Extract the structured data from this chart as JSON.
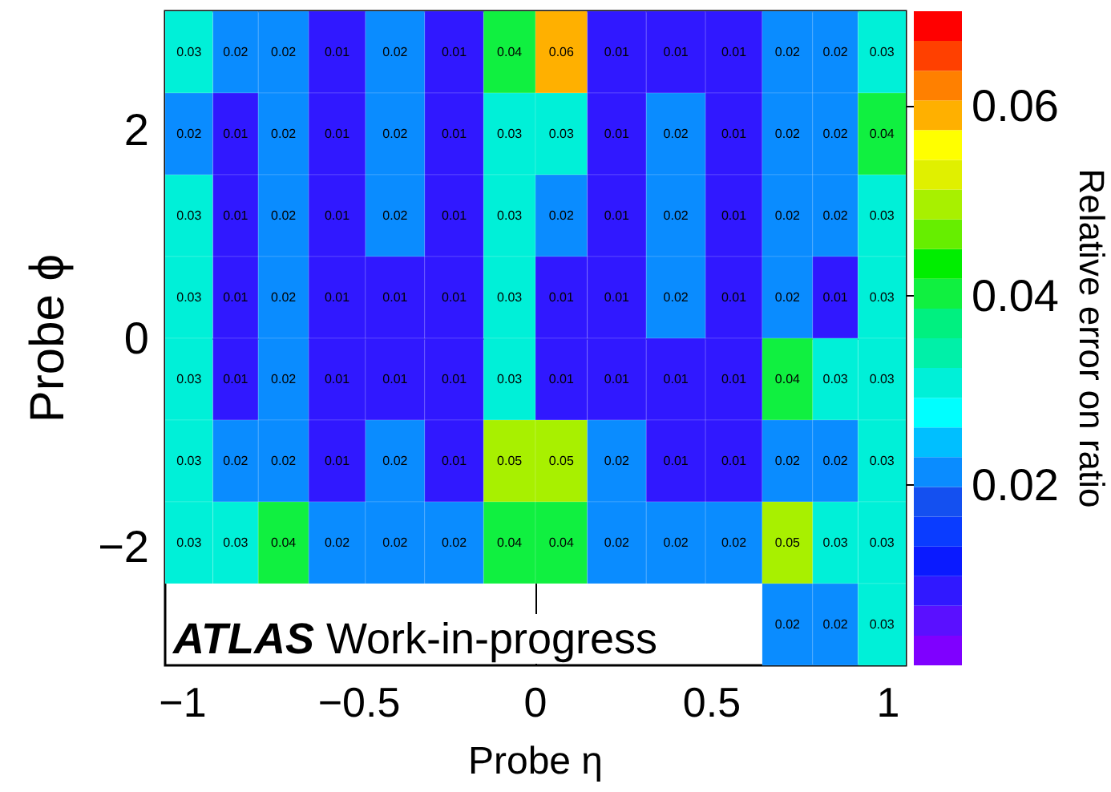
{
  "chart_data": {
    "type": "heatmap",
    "xlabel": "Probe η",
    "ylabel": "Probe ϕ",
    "clabel": "Relative error on ratio",
    "x": [
      -0.979,
      -0.85,
      -0.722,
      -0.564,
      -0.4,
      -0.228,
      -0.066,
      0.066,
      0.228,
      0.4,
      0.564,
      0.722,
      0.85,
      0.979
    ],
    "xlim": [
      -1.05,
      1.05
    ],
    "xticks": [
      -1,
      -0.5,
      0,
      0.5,
      1
    ],
    "ylim": [
      -3.1416,
      3.1416
    ],
    "yticks": [
      -2,
      0,
      2
    ],
    "cells": [
      [
        0.03,
        0.02,
        0.02,
        0.01,
        0.02,
        0.01,
        0.04,
        0.06,
        0.01,
        0.01,
        0.01,
        0.02,
        0.02,
        0.03
      ],
      [
        0.02,
        0.01,
        0.02,
        0.01,
        0.02,
        0.01,
        0.03,
        0.03,
        0.01,
        0.02,
        0.01,
        0.02,
        0.02,
        0.04
      ],
      [
        0.03,
        0.01,
        0.02,
        0.01,
        0.02,
        0.01,
        0.03,
        0.02,
        0.01,
        0.02,
        0.01,
        0.02,
        0.02,
        0.03
      ],
      [
        0.03,
        0.01,
        0.02,
        0.01,
        0.01,
        0.01,
        0.03,
        0.01,
        0.01,
        0.02,
        0.01,
        0.02,
        0.01,
        0.03
      ],
      [
        0.03,
        0.01,
        0.02,
        0.01,
        0.01,
        0.01,
        0.03,
        0.01,
        0.01,
        0.01,
        0.01,
        0.04,
        0.03,
        0.03
      ],
      [
        0.03,
        0.02,
        0.02,
        0.01,
        0.02,
        0.01,
        0.05,
        0.05,
        0.02,
        0.01,
        0.01,
        0.02,
        0.02,
        0.03
      ],
      [
        0.03,
        0.03,
        0.04,
        0.02,
        0.02,
        0.02,
        0.04,
        0.04,
        0.02,
        0.02,
        0.02,
        0.05,
        0.03,
        0.03
      ],
      [
        null,
        null,
        null,
        null,
        null,
        null,
        null,
        null,
        null,
        null,
        null,
        0.02,
        0.02,
        0.03
      ]
    ],
    "data_labels": true,
    "clim": [
      0.001,
      0.07
    ],
    "cticks": [
      0.02,
      0.04,
      0.06
    ],
    "annotations": [
      "ATLAS Work-in-progress"
    ]
  }
}
